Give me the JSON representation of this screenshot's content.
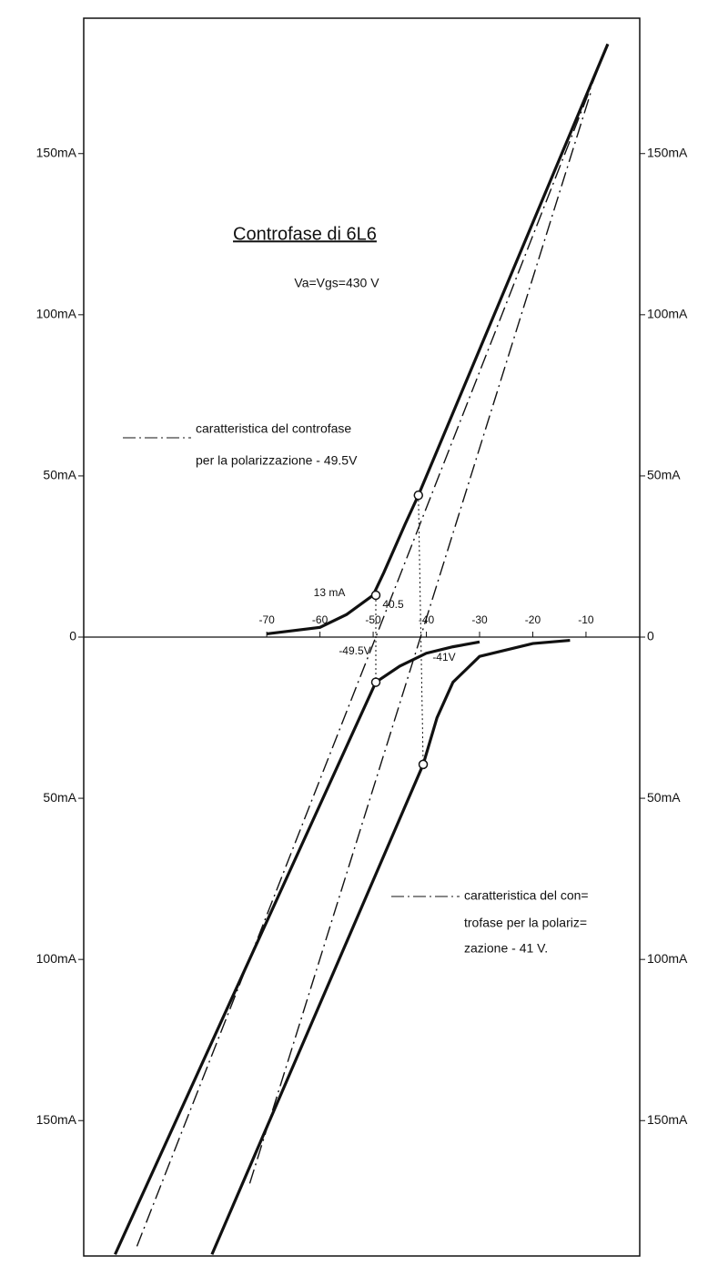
{
  "chart_data": {
    "type": "line",
    "title": "Controfase di 6L6",
    "subtitle": "Va=Vgs=430 V",
    "xlim": [
      -104.4,
      0.1
    ],
    "xticks": [
      -70,
      -60,
      -50,
      -40,
      -30,
      -20,
      -10
    ],
    "ylim": [
      -192,
      192
    ],
    "yticks": [
      {
        "value": 150,
        "label": "150mA"
      },
      {
        "value": 100,
        "label": "100mA"
      },
      {
        "value": 50,
        "label": "50mA"
      },
      0,
      {
        "value": -50,
        "label": "50mA"
      },
      {
        "value": -100,
        "label": "100mA"
      },
      {
        "value": -150,
        "label": "150mA"
      }
    ],
    "y2lim": [
      -192,
      192
    ],
    "y2ticks": [
      {
        "value": 150,
        "label": "150mA"
      },
      {
        "value": 100,
        "label": "100mA"
      },
      {
        "value": 50,
        "label": "50mA"
      },
      0,
      {
        "value": -50,
        "label": "50mA"
      },
      {
        "value": -100,
        "label": "100mA"
      },
      {
        "value": -150,
        "label": "150mA"
      }
    ],
    "series": [
      {
        "style": "solid",
        "color": "#111111",
        "x": [
          -70,
          -60,
          -55,
          -50,
          -48,
          -44,
          -41.5,
          -5.9
        ],
        "values": [
          1,
          3,
          7,
          13,
          20,
          35,
          44,
          184
        ]
      },
      {
        "style": "solid",
        "color": "#111111",
        "x": [
          -13,
          -20,
          -30,
          -35,
          -38,
          -40.6,
          -80.3
        ],
        "values": [
          -1,
          -2,
          -6,
          -14,
          -25,
          -39.5,
          -191.5
        ]
      },
      {
        "style": "solid",
        "color": "#111111",
        "x": [
          -30,
          -35,
          -40,
          -45,
          -49.5,
          -98.5
        ],
        "values": [
          -1.5,
          -3,
          -5,
          -9,
          -14,
          -191.5
        ]
      },
      {
        "style": "dashdot",
        "color": "#111111",
        "x": [
          -94.4,
          -49.5,
          -5.9
        ],
        "values": [
          -189,
          0,
          184
        ]
      },
      {
        "style": "dashdot",
        "color": "#111111",
        "x": [
          -73.2,
          -41.1,
          -9
        ],
        "values": [
          -169.5,
          0,
          169.5
        ]
      }
    ],
    "points": {
      "x": [
        -49.5,
        -49.5,
        -41.5,
        -40.6
      ],
      "values": [
        13,
        -14,
        44,
        -39.5
      ]
    },
    "annotations": [
      "caratteristica del controfase",
      "per la polarizzazione - 49.5V",
      "caratteristica del con=",
      "trofase per la polariz=",
      "zazione - 41 V.",
      "13 mA",
      "40.5",
      "-49.5V",
      "-41V"
    ]
  }
}
